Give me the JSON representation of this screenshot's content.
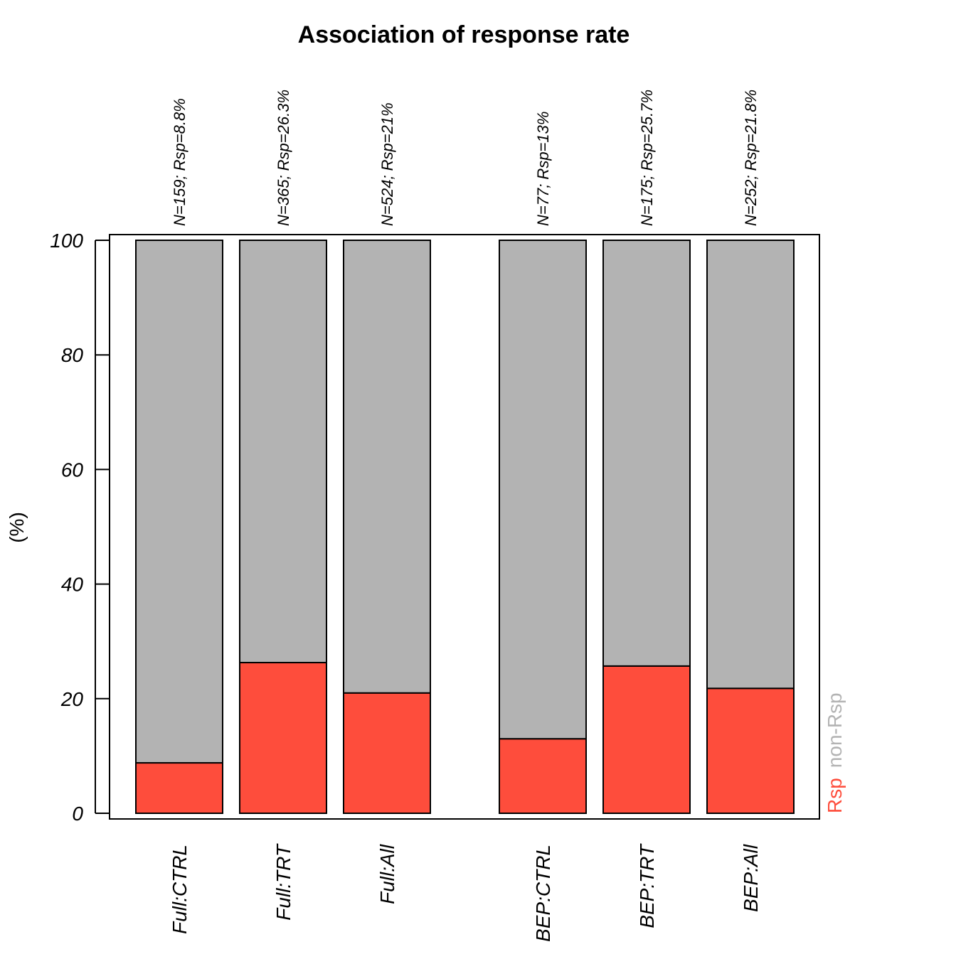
{
  "chart_data": {
    "type": "bar",
    "stacked": true,
    "title": "Association of response rate",
    "ylabel": "(%)",
    "xlabel": "",
    "ylim": [
      0,
      100
    ],
    "yticks": [
      0,
      20,
      40,
      60,
      80,
      100
    ],
    "grid": false,
    "categories": [
      "Full:CTRL",
      "Full:TRT",
      "Full:All",
      "BEP:CTRL",
      "BEP:TRT",
      "BEP:All"
    ],
    "group_gap_after_index": 2,
    "top_labels": [
      "N=159; Rsp=8.8%",
      "N=365; Rsp=26.3%",
      "N=524; Rsp=21%",
      "N=77; Rsp=13%",
      "N=175; Rsp=25.7%",
      "N=252; Rsp=21.8%"
    ],
    "series": [
      {
        "name": "Rsp",
        "color": "#fe4d3c",
        "values": [
          8.8,
          26.3,
          21.0,
          13.0,
          25.7,
          21.8
        ]
      },
      {
        "name": "non-Rsp",
        "color": "#b3b3b3",
        "values": [
          91.2,
          73.7,
          79.0,
          87.0,
          74.3,
          78.2
        ]
      }
    ],
    "legend": {
      "placement": "right-bottom",
      "orientation": "vertical-text"
    }
  }
}
